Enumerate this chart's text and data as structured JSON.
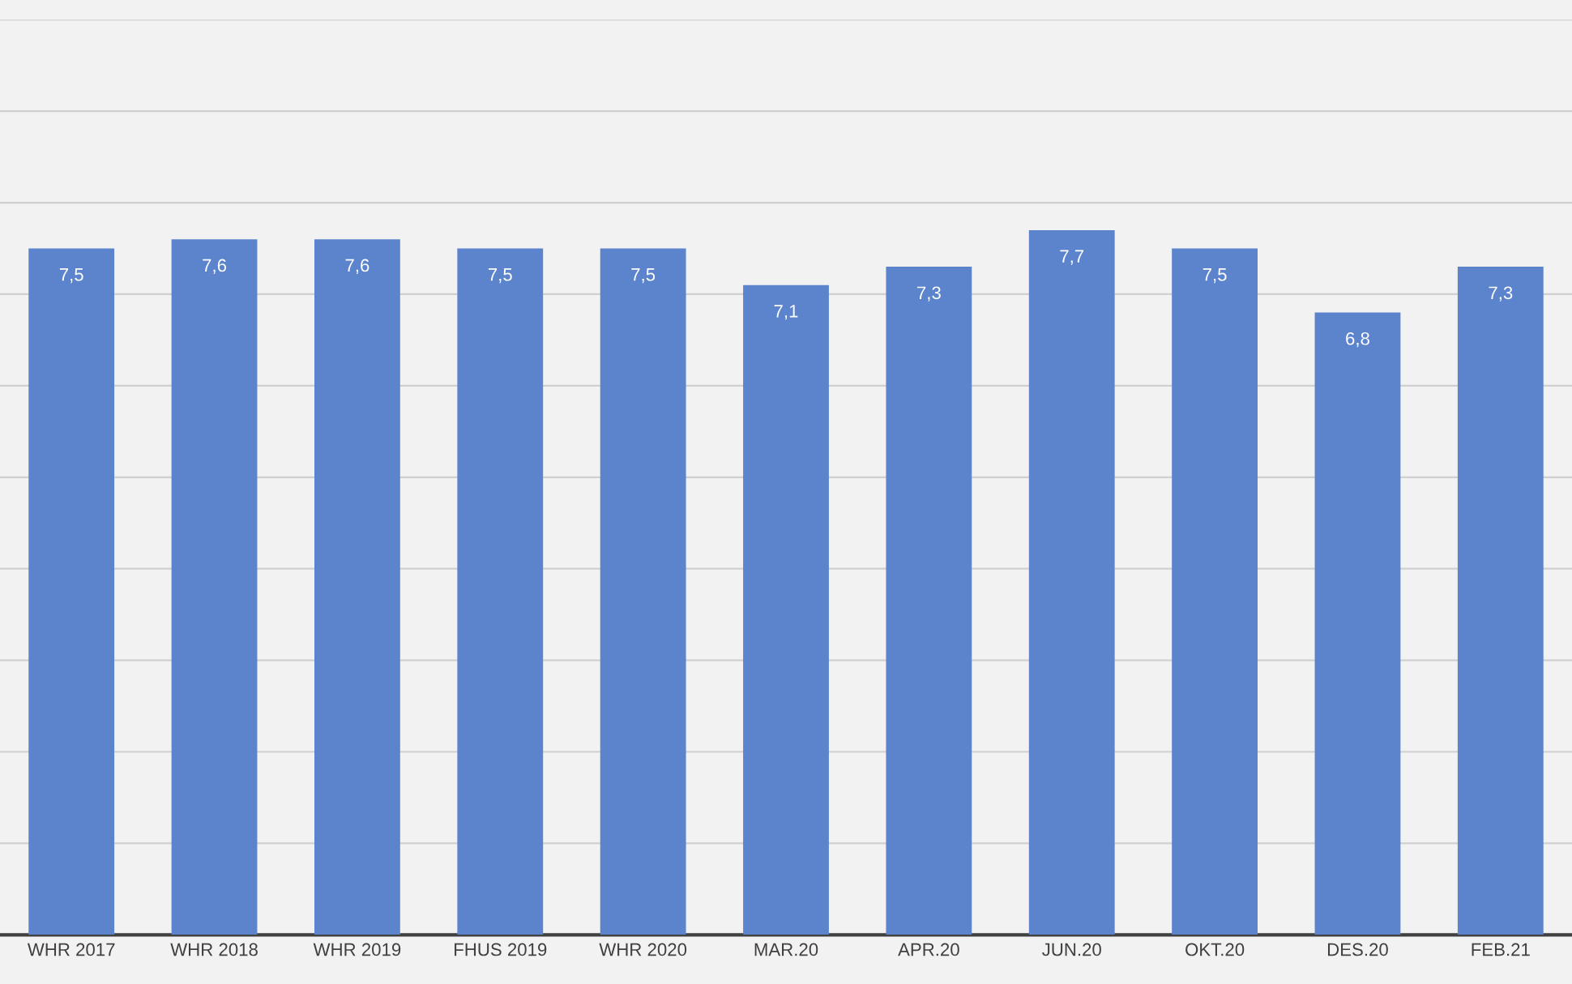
{
  "chart_data": {
    "type": "bar",
    "categories": [
      "WHR 2017",
      "WHR 2018",
      "WHR 2019",
      "FHUS 2019",
      "WHR 2020",
      "MAR.20",
      "APR.20",
      "JUN.20",
      "OKT.20",
      "DES.20",
      "FEB.21"
    ],
    "values": [
      7.5,
      7.6,
      7.6,
      7.5,
      7.5,
      7.1,
      7.3,
      7.7,
      7.5,
      6.8,
      7.3
    ],
    "value_labels": [
      "7,5",
      "7,6",
      "7,6",
      "7,5",
      "7,5",
      "7,1",
      "7,3",
      "7,7",
      "7,5",
      "6,8",
      "7,3"
    ],
    "color": "#5b84cc",
    "ylim": [
      0,
      10
    ],
    "yticks": [
      {
        "value": 0,
        "label": null
      },
      {
        "value": 1,
        "label": null
      },
      {
        "value": 2,
        "label": null
      },
      {
        "value": 3,
        "label": null
      },
      {
        "value": 4,
        "label": null
      },
      {
        "value": 5,
        "label": null
      },
      {
        "value": 6,
        "label": null
      },
      {
        "value": 7,
        "label": null
      },
      {
        "value": 8,
        "label": null
      },
      {
        "value": 9,
        "label": null
      },
      {
        "value": 10,
        "label": null
      }
    ],
    "grid": "y",
    "tick_labels": "x",
    "legend": false
  }
}
